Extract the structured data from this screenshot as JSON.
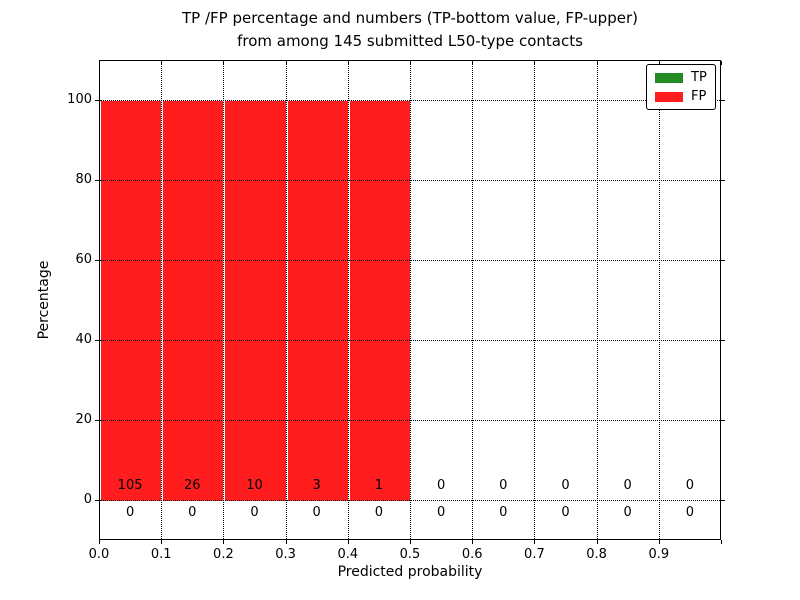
{
  "title": {
    "line1": "TP /FP percentage and numbers (TP-bottom value, FP-upper)",
    "line2": "from among 145 submitted L50-type contacts"
  },
  "axes": {
    "xlabel": "Predicted probability",
    "ylabel": "Percentage",
    "x_tick_labels": [
      "0.0",
      "0.1",
      "0.2",
      "0.3",
      "0.4",
      "0.5",
      "0.6",
      "0.7",
      "0.8",
      "0.9"
    ],
    "y_tick_labels": [
      "0",
      "20",
      "40",
      "60",
      "80",
      "100"
    ],
    "y_tick_values": [
      0,
      20,
      40,
      60,
      80,
      100
    ]
  },
  "legend": {
    "items": [
      {
        "label": "TP",
        "color": "#228b22"
      },
      {
        "label": "FP",
        "color": "#ff1d1d"
      }
    ]
  },
  "chart_data": {
    "type": "bar",
    "stacked": true,
    "title": "TP /FP percentage and numbers (TP-bottom value, FP-upper) from among 145 submitted L50-type contacts",
    "xlabel": "Predicted probability",
    "ylabel": "Percentage",
    "xlim": [
      0.0,
      1.0
    ],
    "ylim": [
      -10,
      110
    ],
    "grid": true,
    "grid_style": "dotted",
    "legend_position": "upper right",
    "total_contacts": 145,
    "bins": {
      "starts": [
        0.0,
        0.1,
        0.2,
        0.3,
        0.4,
        0.5,
        0.6,
        0.7,
        0.8,
        0.9
      ],
      "width": 0.1
    },
    "series": [
      {
        "name": "TP",
        "color": "#228b22",
        "percent": [
          0,
          0,
          0,
          0,
          0,
          0,
          0,
          0,
          0,
          0
        ],
        "counts": [
          0,
          0,
          0,
          0,
          0,
          0,
          0,
          0,
          0,
          0
        ]
      },
      {
        "name": "FP",
        "color": "#ff1d1d",
        "percent": [
          100,
          100,
          100,
          100,
          100,
          0,
          0,
          0,
          0,
          0
        ],
        "counts": [
          105,
          26,
          10,
          3,
          1,
          0,
          0,
          0,
          0,
          0
        ]
      }
    ]
  }
}
